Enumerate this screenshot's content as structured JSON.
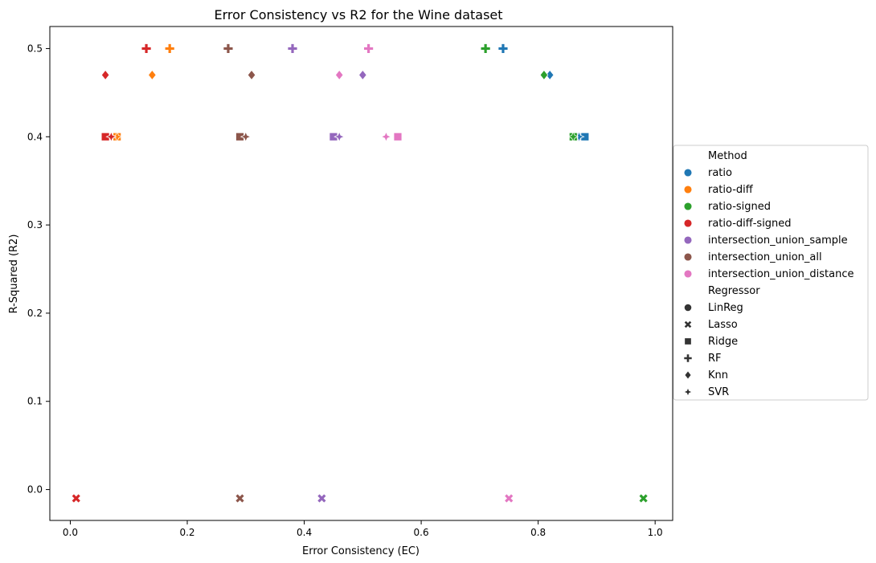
{
  "chart_data": {
    "type": "scatter",
    "title": "Error Consistency vs R2 for the Wine dataset",
    "xlabel": "Error Consistency (EC)",
    "ylabel": "R-Squared (R2)",
    "xlim": [
      -0.035,
      1.03
    ],
    "ylim": [
      -0.035,
      0.525
    ],
    "xticks": [
      0.0,
      0.2,
      0.4,
      0.6,
      0.8,
      1.0
    ],
    "xtick_labels": [
      "0.0",
      "0.2",
      "0.4",
      "0.6",
      "0.8",
      "1.0"
    ],
    "yticks": [
      0.0,
      0.1,
      0.2,
      0.3,
      0.4,
      0.5
    ],
    "ytick_labels": [
      "0.0",
      "0.1",
      "0.2",
      "0.3",
      "0.4",
      "0.5"
    ],
    "grid": false,
    "legend_placement": "center-right, outside plot",
    "legend": {
      "hue_title": "Method",
      "methods": [
        {
          "name": "ratio",
          "color": "#1f77b4"
        },
        {
          "name": "ratio-diff",
          "color": "#ff7f0e"
        },
        {
          "name": "ratio-signed",
          "color": "#2ca02c"
        },
        {
          "name": "ratio-diff-signed",
          "color": "#d62728"
        },
        {
          "name": "intersection_union_sample",
          "color": "#9467bd"
        },
        {
          "name": "intersection_union_all",
          "color": "#8c564b"
        },
        {
          "name": "intersection_union_distance",
          "color": "#e377c2"
        }
      ],
      "style_title": "Regressor",
      "regressors": [
        {
          "name": "LinReg",
          "marker": "circle"
        },
        {
          "name": "Lasso",
          "marker": "x"
        },
        {
          "name": "Ridge",
          "marker": "square"
        },
        {
          "name": "RF",
          "marker": "plus"
        },
        {
          "name": "Knn",
          "marker": "diamond"
        },
        {
          "name": "SVR",
          "marker": "star4"
        }
      ]
    },
    "series": [
      {
        "name": "ratio",
        "color": "#1f77b4",
        "points": [
          {
            "regressor": "LinReg",
            "x": 0.87,
            "y": 0.4
          },
          {
            "regressor": "Lasso",
            "x": 0.87,
            "y": 0.4
          },
          {
            "regressor": "Ridge",
            "x": 0.88,
            "y": 0.4
          },
          {
            "regressor": "RF",
            "x": 0.74,
            "y": 0.5
          },
          {
            "regressor": "Knn",
            "x": 0.82,
            "y": 0.47
          },
          {
            "regressor": "SVR",
            "x": 0.87,
            "y": 0.4
          }
        ]
      },
      {
        "name": "ratio-diff",
        "color": "#ff7f0e",
        "points": [
          {
            "regressor": "LinReg",
            "x": 0.08,
            "y": 0.4
          },
          {
            "regressor": "Lasso",
            "x": 0.08,
            "y": 0.4
          },
          {
            "regressor": "Ridge",
            "x": 0.08,
            "y": 0.4
          },
          {
            "regressor": "RF",
            "x": 0.17,
            "y": 0.5
          },
          {
            "regressor": "Knn",
            "x": 0.14,
            "y": 0.47
          },
          {
            "regressor": "SVR",
            "x": 0.08,
            "y": 0.4
          }
        ]
      },
      {
        "name": "ratio-signed",
        "color": "#2ca02c",
        "points": [
          {
            "regressor": "LinReg",
            "x": 0.86,
            "y": 0.4
          },
          {
            "regressor": "Lasso",
            "x": 0.98,
            "y": -0.01
          },
          {
            "regressor": "Ridge",
            "x": 0.86,
            "y": 0.4
          },
          {
            "regressor": "RF",
            "x": 0.71,
            "y": 0.5
          },
          {
            "regressor": "Knn",
            "x": 0.81,
            "y": 0.47
          },
          {
            "regressor": "SVR",
            "x": 0.86,
            "y": 0.4
          }
        ]
      },
      {
        "name": "ratio-diff-signed",
        "color": "#d62728",
        "points": [
          {
            "regressor": "LinReg",
            "x": 0.06,
            "y": 0.4
          },
          {
            "regressor": "Lasso",
            "x": 0.01,
            "y": -0.01
          },
          {
            "regressor": "Ridge",
            "x": 0.06,
            "y": 0.4
          },
          {
            "regressor": "RF",
            "x": 0.13,
            "y": 0.5
          },
          {
            "regressor": "Knn",
            "x": 0.06,
            "y": 0.47
          },
          {
            "regressor": "SVR",
            "x": 0.07,
            "y": 0.4
          }
        ]
      },
      {
        "name": "intersection_union_sample",
        "color": "#9467bd",
        "points": [
          {
            "regressor": "LinReg",
            "x": 0.45,
            "y": 0.4
          },
          {
            "regressor": "Lasso",
            "x": 0.43,
            "y": -0.01
          },
          {
            "regressor": "Ridge",
            "x": 0.45,
            "y": 0.4
          },
          {
            "regressor": "RF",
            "x": 0.38,
            "y": 0.5
          },
          {
            "regressor": "Knn",
            "x": 0.5,
            "y": 0.47
          },
          {
            "regressor": "SVR",
            "x": 0.46,
            "y": 0.4
          }
        ]
      },
      {
        "name": "intersection_union_all",
        "color": "#8c564b",
        "points": [
          {
            "regressor": "LinReg",
            "x": 0.29,
            "y": 0.4
          },
          {
            "regressor": "Lasso",
            "x": 0.29,
            "y": -0.01
          },
          {
            "regressor": "Ridge",
            "x": 0.29,
            "y": 0.4
          },
          {
            "regressor": "RF",
            "x": 0.27,
            "y": 0.5
          },
          {
            "regressor": "Knn",
            "x": 0.31,
            "y": 0.47
          },
          {
            "regressor": "SVR",
            "x": 0.3,
            "y": 0.4
          }
        ]
      },
      {
        "name": "intersection_union_distance",
        "color": "#e377c2",
        "points": [
          {
            "regressor": "LinReg",
            "x": 0.56,
            "y": 0.4
          },
          {
            "regressor": "Lasso",
            "x": 0.75,
            "y": -0.01
          },
          {
            "regressor": "Ridge",
            "x": 0.56,
            "y": 0.4
          },
          {
            "regressor": "RF",
            "x": 0.51,
            "y": 0.5
          },
          {
            "regressor": "Knn",
            "x": 0.46,
            "y": 0.47
          },
          {
            "regressor": "SVR",
            "x": 0.54,
            "y": 0.4
          }
        ]
      }
    ]
  }
}
